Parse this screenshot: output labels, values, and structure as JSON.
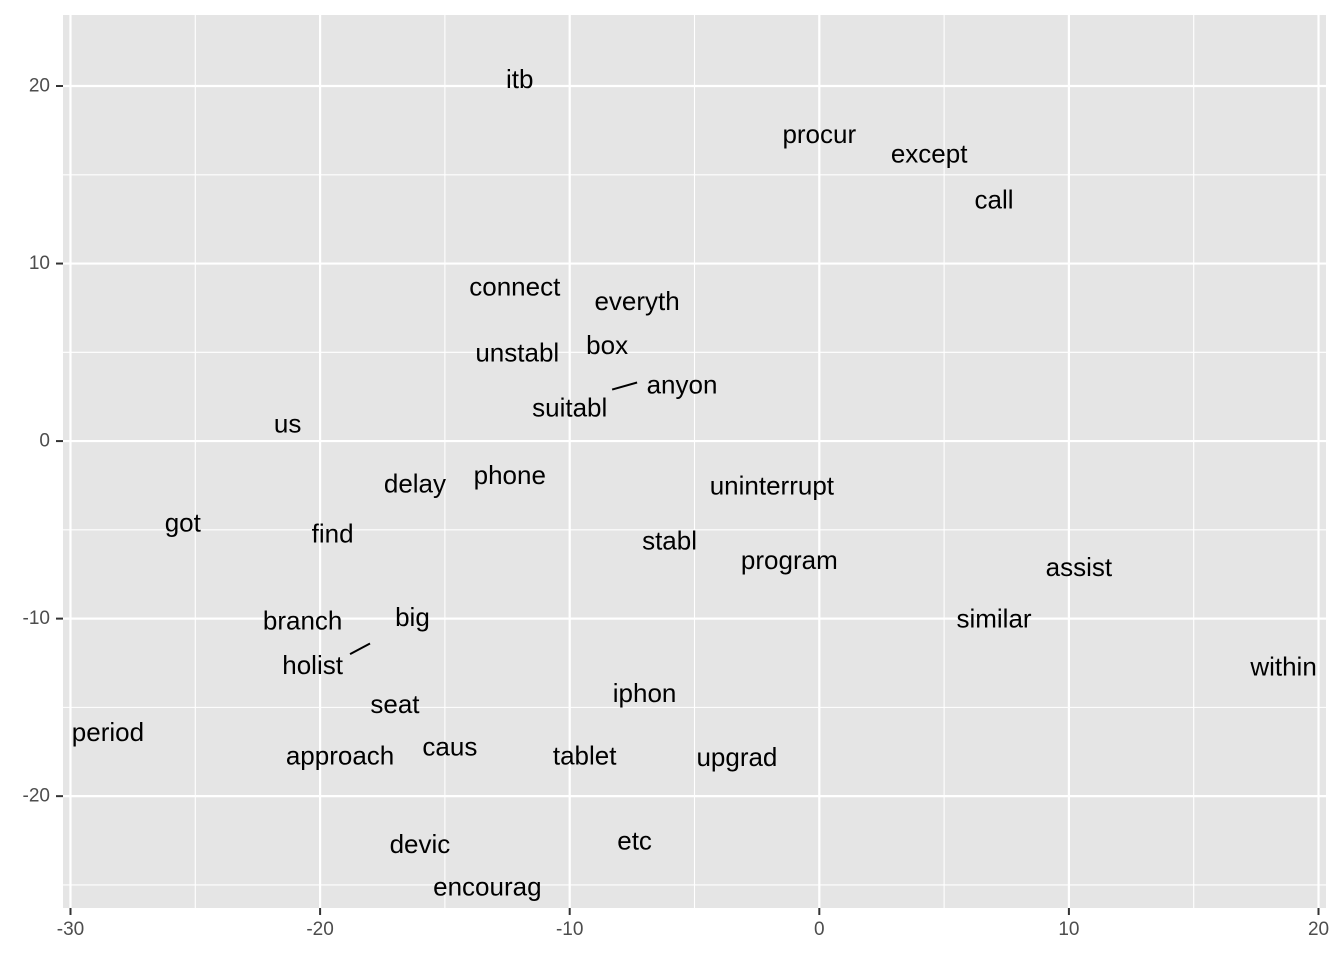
{
  "chart_data": {
    "type": "scatter",
    "title": "",
    "xlabel": "",
    "ylabel": "",
    "xlim": [
      -30.3,
      20.3
    ],
    "ylim": [
      -26.3,
      24
    ],
    "x_ticks": [
      -30,
      -20,
      -10,
      0,
      10,
      20
    ],
    "x_tick_labels": [
      "-30",
      "-20",
      "-10",
      "0",
      "10",
      "20"
    ],
    "y_ticks": [
      -20,
      -10,
      0,
      10,
      20
    ],
    "y_tick_labels": [
      "-20",
      "-10",
      "0",
      "10",
      "20"
    ],
    "grid": true,
    "colors": {
      "panel": "#e5e5e5",
      "grid": "#ffffff",
      "text": "#000000",
      "axis_text": "#4d4d4d",
      "tick": "#333333"
    },
    "points": [
      {
        "label": "itb",
        "x": -12.0,
        "y": 20.4
      },
      {
        "label": "procur",
        "x": 0.0,
        "y": 17.3
      },
      {
        "label": "except",
        "x": 4.4,
        "y": 16.2
      },
      {
        "label": "call",
        "x": 7.0,
        "y": 13.6
      },
      {
        "label": "connect",
        "x": -12.2,
        "y": 8.7
      },
      {
        "label": "everyth",
        "x": -7.3,
        "y": 7.9
      },
      {
        "label": "box",
        "x": -8.5,
        "y": 5.4
      },
      {
        "label": "unstabl",
        "x": -12.1,
        "y": 5.0
      },
      {
        "label": "anyon",
        "x": -5.5,
        "y": 3.2
      },
      {
        "label": "suitabl",
        "x": -10.0,
        "y": 1.9
      },
      {
        "label": "us",
        "x": -21.3,
        "y": 1.0
      },
      {
        "label": "delay",
        "x": -16.2,
        "y": -2.4
      },
      {
        "label": "phone",
        "x": -12.4,
        "y": -1.9
      },
      {
        "label": "uninterrupt",
        "x": -1.9,
        "y": -2.5
      },
      {
        "label": "got",
        "x": -25.5,
        "y": -4.6
      },
      {
        "label": "find",
        "x": -19.5,
        "y": -5.2
      },
      {
        "label": "stabl",
        "x": -6.0,
        "y": -5.6
      },
      {
        "label": "program",
        "x": -1.2,
        "y": -6.7
      },
      {
        "label": "assist",
        "x": 10.4,
        "y": -7.1
      },
      {
        "label": "branch",
        "x": -20.7,
        "y": -10.1
      },
      {
        "label": "big",
        "x": -16.3,
        "y": -9.9
      },
      {
        "label": "similar",
        "x": 7.0,
        "y": -10.0
      },
      {
        "label": "holist",
        "x": -20.3,
        "y": -12.6
      },
      {
        "label": "within",
        "x": 18.6,
        "y": -12.7
      },
      {
        "label": "iphon",
        "x": -7.0,
        "y": -14.2
      },
      {
        "label": "seat",
        "x": -17.0,
        "y": -14.8
      },
      {
        "label": "period",
        "x": -28.5,
        "y": -16.4
      },
      {
        "label": "caus",
        "x": -14.8,
        "y": -17.2
      },
      {
        "label": "approach",
        "x": -19.2,
        "y": -17.7
      },
      {
        "label": "tablet",
        "x": -9.4,
        "y": -17.7
      },
      {
        "label": "upgrad",
        "x": -3.3,
        "y": -17.8
      },
      {
        "label": "devic",
        "x": -16.0,
        "y": -22.7
      },
      {
        "label": "etc",
        "x": -7.4,
        "y": -22.5
      },
      {
        "label": "encourag",
        "x": -13.3,
        "y": -25.1
      }
    ],
    "label_segments": [
      {
        "from_label": "anyon",
        "x1": -8.3,
        "y1": 2.9,
        "x2": -7.3,
        "y2": 3.3
      },
      {
        "from_label": "holist",
        "x1": -18.8,
        "y1": -12.0,
        "x2": -18.0,
        "y2": -11.4
      }
    ]
  }
}
